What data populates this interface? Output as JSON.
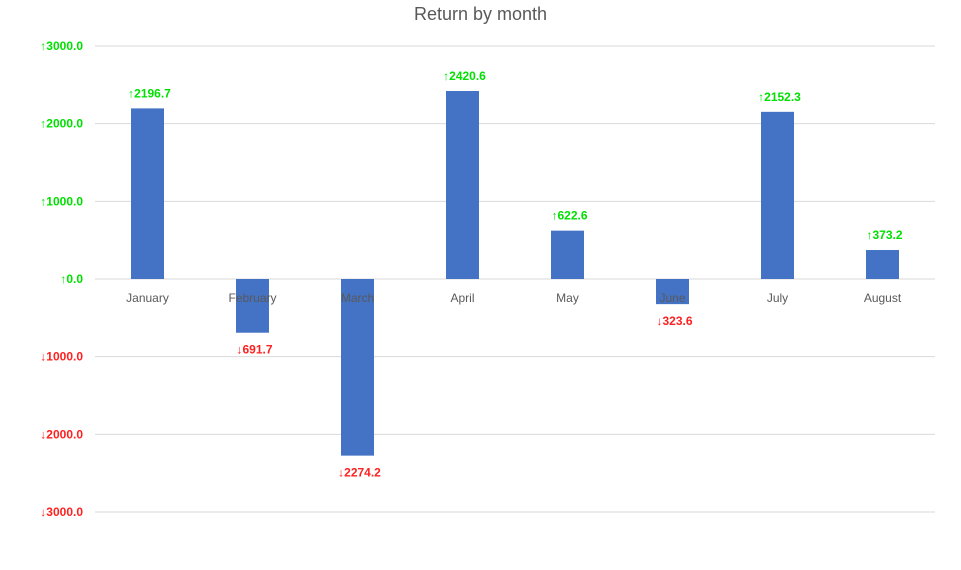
{
  "chart_data": {
    "type": "bar",
    "title": "Return by month",
    "xlabel": "",
    "ylabel": "",
    "categories": [
      "January",
      "February",
      "March",
      "April",
      "May",
      "June",
      "July",
      "August"
    ],
    "values": [
      2196.7,
      -691.7,
      -2274.2,
      2420.6,
      622.6,
      -323.6,
      2152.3,
      373.2
    ],
    "value_labels": [
      "↑2196.7",
      "↓691.7",
      "↓2274.2",
      "↑2420.6",
      "↑622.6",
      "↓323.6",
      "↑2152.3",
      "↑373.2"
    ],
    "ylim": [
      -3000,
      3000
    ],
    "yticks": [
      3000,
      2000,
      1000,
      0,
      -1000,
      -2000,
      -3000
    ],
    "ytick_labels": [
      "↑3000.0",
      "↑2000.0",
      "↑1000.0",
      "↑0.0",
      "↓1000.0",
      "↓2000.0",
      "↓3000.0"
    ],
    "grid": true,
    "legend": "none",
    "colors": {
      "bar": "#4472C4",
      "positive_label": "#00E000",
      "negative_label": "#FF2020",
      "gridline": "#D9D9D9",
      "category_label": "#595959",
      "title": "#595959"
    }
  }
}
